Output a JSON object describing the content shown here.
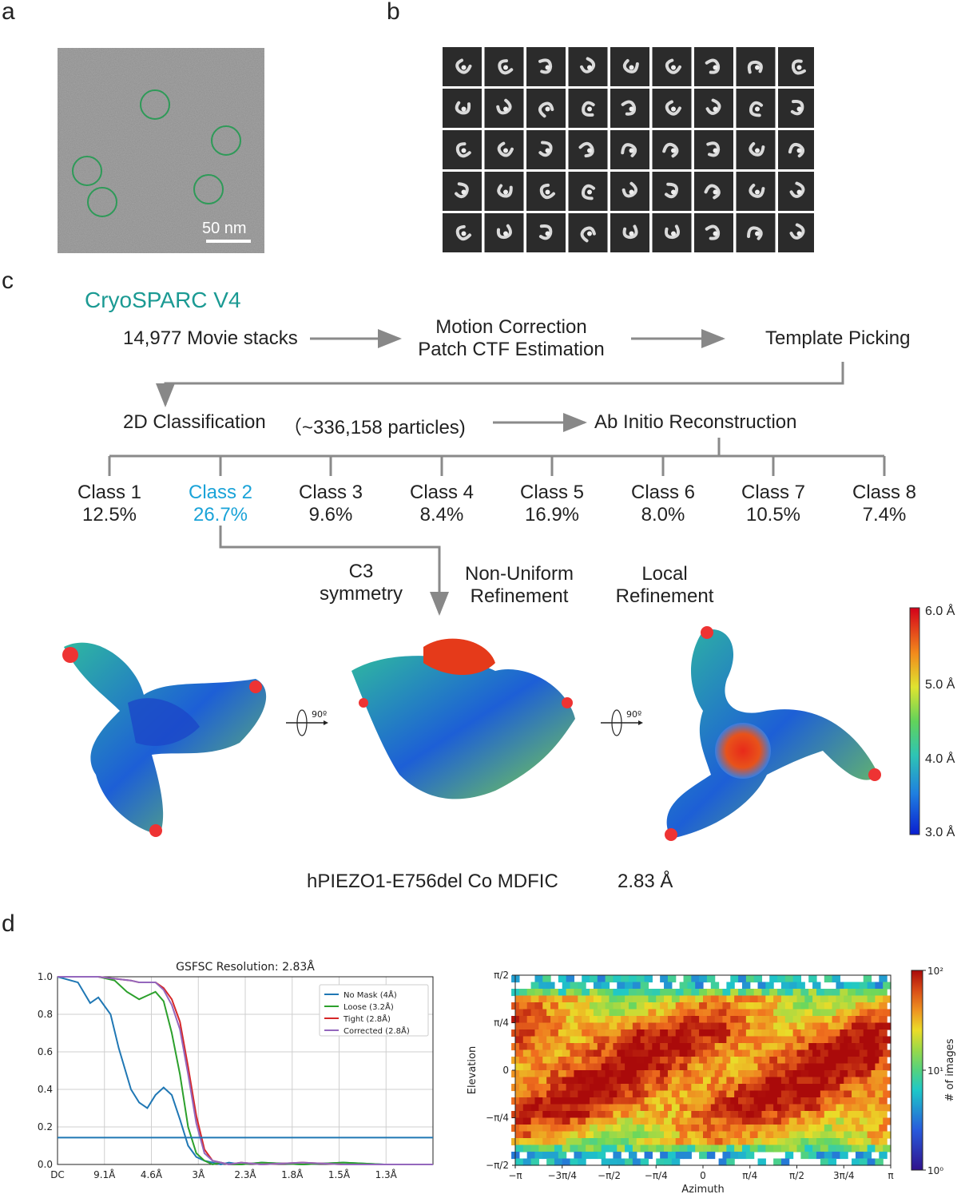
{
  "panels": {
    "a": "a",
    "b": "b",
    "c": "c",
    "d": "d"
  },
  "micrograph": {
    "scale_bar": "50 nm"
  },
  "flow": {
    "software": "CryoSPARC V4",
    "movies": "14,977 Movie stacks",
    "motion": "Motion Correction",
    "ctf": "Patch CTF Estimation",
    "picking": "Template Picking",
    "class2d": "2D Classification",
    "particles": "（~336,158 particles)",
    "abinitio": "Ab Initio Reconstruction",
    "classes": [
      {
        "name": "Class 1",
        "pct": "12.5%"
      },
      {
        "name": "Class 2",
        "pct": "26.7%"
      },
      {
        "name": "Class 3",
        "pct": "9.6%"
      },
      {
        "name": "Class 4",
        "pct": "8.4%"
      },
      {
        "name": "Class 5",
        "pct": "16.9%"
      },
      {
        "name": "Class 6",
        "pct": "8.0%"
      },
      {
        "name": "Class 7",
        "pct": "10.5%"
      },
      {
        "name": "Class 8",
        "pct": "7.4%"
      }
    ],
    "c3_line1": "C3",
    "c3_line2": "symmetry",
    "nu_line1": "Non-Uniform",
    "nu_line2": "Refinement",
    "local_line1": "Local",
    "local_line2": "Refinement",
    "rotation": "90º",
    "map_title": "hPIEZO1-E756del Co MDFIC",
    "map_resolution": "2.83 Å",
    "scale_labels": [
      "6.0 Å",
      "5.0 Å",
      "4.0 Å",
      "3.0 Å"
    ],
    "highlight_color": "#1aa3d8",
    "title_color": "#1b9a93"
  },
  "chart_data": [
    {
      "type": "line",
      "title": "GSFSC Resolution: 2.83Å",
      "x_tick_labels": [
        "DC",
        "9.1Å",
        "4.6Å",
        "3Å",
        "2.3Å",
        "1.8Å",
        "1.5Å",
        "1.3Å"
      ],
      "ylim": [
        0,
        1.0
      ],
      "y_ticks": [
        "0.0",
        "0.2",
        "0.4",
        "0.6",
        "0.8",
        "1.0"
      ],
      "xlim": [
        0,
        0.92
      ],
      "grid": true,
      "threshold": 0.143,
      "legend_position": "top-right",
      "series": [
        {
          "name": "No Mask (4Å)",
          "color": "#1f77b4",
          "x": [
            0.0,
            0.05,
            0.08,
            0.1,
            0.13,
            0.15,
            0.18,
            0.2,
            0.22,
            0.24,
            0.26,
            0.28,
            0.3,
            0.32,
            0.34,
            0.36,
            0.38,
            0.4,
            0.42,
            0.45,
            0.5,
            0.6,
            0.7,
            0.8,
            0.92
          ],
          "y": [
            1.0,
            0.97,
            0.86,
            0.89,
            0.8,
            0.62,
            0.4,
            0.33,
            0.3,
            0.37,
            0.41,
            0.37,
            0.24,
            0.1,
            0.04,
            0.02,
            0.01,
            0.0,
            0.01,
            0.0,
            0.01,
            0.0,
            0.01,
            0.0,
            0.0
          ]
        },
        {
          "name": "Loose (3.2Å)",
          "color": "#2ca02c",
          "x": [
            0.0,
            0.1,
            0.14,
            0.17,
            0.2,
            0.22,
            0.24,
            0.26,
            0.28,
            0.3,
            0.32,
            0.34,
            0.36,
            0.38,
            0.4,
            0.42,
            0.45,
            0.5,
            0.6,
            0.7,
            0.8,
            0.92
          ],
          "y": [
            1.0,
            1.0,
            0.98,
            0.92,
            0.88,
            0.9,
            0.92,
            0.87,
            0.7,
            0.48,
            0.2,
            0.06,
            0.02,
            0.0,
            0.01,
            0.0,
            0.0,
            0.01,
            0.0,
            0.01,
            0.0,
            0.0
          ]
        },
        {
          "name": "Tight (2.8Å)",
          "color": "#d62728",
          "x": [
            0.0,
            0.1,
            0.14,
            0.18,
            0.2,
            0.24,
            0.26,
            0.28,
            0.3,
            0.32,
            0.34,
            0.36,
            0.38,
            0.4,
            0.42,
            0.45,
            0.5,
            0.6,
            0.7,
            0.8,
            0.92
          ],
          "y": [
            1.0,
            1.0,
            0.99,
            0.98,
            0.97,
            0.97,
            0.94,
            0.88,
            0.76,
            0.52,
            0.26,
            0.08,
            0.02,
            0.01,
            0.0,
            0.01,
            0.0,
            0.01,
            0.0,
            0.0,
            0.0
          ]
        },
        {
          "name": "Corrected (2.8Å)",
          "color": "#9467bd",
          "x": [
            0.0,
            0.1,
            0.14,
            0.18,
            0.2,
            0.24,
            0.26,
            0.28,
            0.3,
            0.32,
            0.34,
            0.36,
            0.38,
            0.4,
            0.42,
            0.45,
            0.5,
            0.6,
            0.7,
            0.8,
            0.92
          ],
          "y": [
            1.0,
            1.0,
            0.99,
            0.98,
            0.97,
            0.97,
            0.93,
            0.85,
            0.72,
            0.48,
            0.22,
            0.06,
            0.02,
            0.01,
            0.0,
            0.01,
            0.0,
            0.01,
            0.0,
            0.0,
            0.0
          ]
        }
      ]
    },
    {
      "type": "heatmap",
      "xlabel": "Azimuth",
      "ylabel": "Elevation",
      "x_tick_labels": [
        "−π",
        "−3π/4",
        "−π/2",
        "−π/4",
        "0",
        "π/4",
        "π/2",
        "3π/4",
        "π"
      ],
      "y_tick_labels": [
        "π/2",
        "π/4",
        "0",
        "−π/4",
        "−π/2"
      ],
      "colorbar_label": "# of images",
      "colorbar_ticks": [
        "10²",
        "10¹",
        "10⁰"
      ],
      "colorbar_range": [
        1,
        100
      ]
    }
  ]
}
